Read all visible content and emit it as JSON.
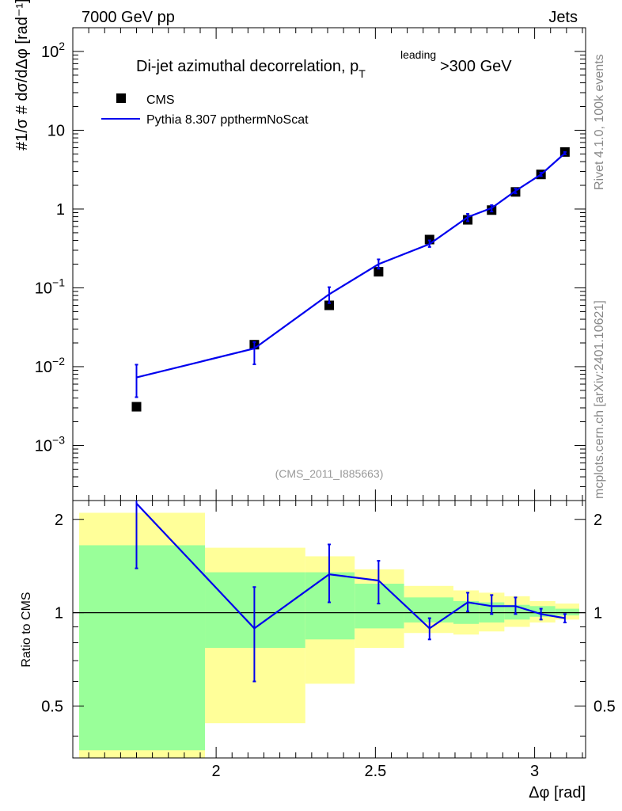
{
  "header": {
    "energy_label": "7000 GeV pp",
    "category_label": "Jets"
  },
  "side_labels": {
    "rivet": "Rivet 4.1.0,  100k events",
    "source": "mcplots.cern.ch [arXiv:2401.10621]"
  },
  "chart_data": [
    {
      "type": "scatter+line",
      "panel": "main",
      "title_main": "Di-jet azimuthal decorrelation, p",
      "title_sub": "T",
      "title_sup": "leading",
      "title_tail": ">300 GeV",
      "ylabel": "#frac{1}{σ}#frac{dσ}{dΔφ} [rad⁻¹]",
      "ylabel_display": "#1/σ # dσ/dΔφ [rad⁻¹]",
      "yscale": "log",
      "ylim": [
        0.0002,
        200
      ],
      "xlim": [
        1.55,
        3.16
      ],
      "ytick_labels": [
        {
          "value": 0.001,
          "base": "10",
          "exp": "−3"
        },
        {
          "value": 0.01,
          "base": "10",
          "exp": "−2"
        },
        {
          "value": 0.1,
          "base": "10",
          "exp": "−1"
        },
        {
          "value": 1,
          "base": "1",
          "exp": ""
        },
        {
          "value": 10,
          "base": "10",
          "exp": ""
        },
        {
          "value": 100,
          "base": "10",
          "exp": "2"
        }
      ],
      "analysis_tag": "(CMS_2011_I885663)",
      "legend": [
        {
          "name": "CMS",
          "marker": "square",
          "color": "#000000"
        },
        {
          "name": "Pythia 8.307 ppthermNoScat",
          "marker": "line",
          "color": "#0000ee"
        }
      ],
      "series": [
        {
          "name": "CMS",
          "x": [
            1.75,
            2.12,
            2.355,
            2.51,
            2.67,
            2.79,
            2.865,
            2.94,
            3.02,
            3.095
          ],
          "y": [
            0.0031,
            0.019,
            0.06,
            0.16,
            0.41,
            0.73,
            0.97,
            1.65,
            2.75,
            5.3
          ]
        },
        {
          "name": "Pythia 8.307 ppthermNoScat",
          "x": [
            1.75,
            2.12,
            2.355,
            2.51,
            2.67,
            2.79,
            2.865,
            2.94,
            3.02,
            3.095
          ],
          "y": [
            0.0073,
            0.017,
            0.083,
            0.2,
            0.36,
            0.79,
            1.03,
            1.7,
            2.75,
            5.1
          ],
          "err_lo": [
            0.0041,
            0.0107,
            0.064,
            0.175,
            0.33,
            0.7,
            0.93,
            1.58,
            2.62,
            4.95
          ],
          "err_hi": [
            0.0106,
            0.0205,
            0.102,
            0.23,
            0.4,
            0.87,
            1.12,
            1.82,
            2.9,
            5.3
          ]
        }
      ]
    },
    {
      "type": "ratio",
      "panel": "ratio",
      "ylabel": "Ratio to CMS",
      "yscale": "log",
      "ylim": [
        0.34,
        2.3
      ],
      "xlim": [
        1.55,
        3.16
      ],
      "xlabel": "Δφ [rad]",
      "xtick_labels": [
        {
          "value": 2,
          "label": "2"
        },
        {
          "value": 2.5,
          "label": "2.5"
        },
        {
          "value": 3,
          "label": "3"
        }
      ],
      "ytick_labels": [
        {
          "value": 0.5,
          "label": "0.5"
        },
        {
          "value": 1,
          "label": "1"
        },
        {
          "value": 2,
          "label": "2"
        }
      ],
      "bands": [
        {
          "x0": 1.57,
          "x1": 1.965,
          "yellow": [
            0.34,
            2.1
          ],
          "green": [
            0.36,
            1.65
          ]
        },
        {
          "x0": 1.965,
          "x1": 2.28,
          "yellow": [
            0.44,
            1.62
          ],
          "green": [
            0.77,
            1.35
          ]
        },
        {
          "x0": 2.28,
          "x1": 2.435,
          "yellow": [
            0.59,
            1.52
          ],
          "green": [
            0.82,
            1.35
          ]
        },
        {
          "x0": 2.435,
          "x1": 2.59,
          "yellow": [
            0.77,
            1.38
          ],
          "green": [
            0.89,
            1.24
          ]
        },
        {
          "x0": 2.59,
          "x1": 2.745,
          "yellow": [
            0.86,
            1.22
          ],
          "green": [
            0.93,
            1.12
          ]
        },
        {
          "x0": 2.745,
          "x1": 2.825,
          "yellow": [
            0.85,
            1.18
          ],
          "green": [
            0.92,
            1.09
          ]
        },
        {
          "x0": 2.825,
          "x1": 2.905,
          "yellow": [
            0.87,
            1.16
          ],
          "green": [
            0.93,
            1.08
          ]
        },
        {
          "x0": 2.905,
          "x1": 2.985,
          "yellow": [
            0.9,
            1.13
          ],
          "green": [
            0.95,
            1.06
          ]
        },
        {
          "x0": 2.985,
          "x1": 3.065,
          "yellow": [
            0.93,
            1.09
          ],
          "green": [
            0.97,
            1.05
          ]
        },
        {
          "x0": 3.065,
          "x1": 3.14,
          "yellow": [
            0.95,
            1.07
          ],
          "green": [
            0.98,
            1.03
          ]
        }
      ],
      "series": [
        {
          "name": "Pythia 8.307 ppthermNoScat / CMS",
          "x": [
            1.75,
            2.12,
            2.355,
            2.51,
            2.67,
            2.79,
            2.865,
            2.94,
            3.02,
            3.095
          ],
          "y": [
            2.25,
            0.89,
            1.33,
            1.27,
            0.89,
            1.08,
            1.05,
            1.05,
            0.99,
            0.96
          ],
          "err_lo": [
            1.39,
            0.6,
            1.08,
            1.07,
            0.82,
            1.01,
            0.99,
            0.99,
            0.95,
            0.93
          ],
          "err_hi": [
            3.3,
            1.21,
            1.66,
            1.47,
            0.96,
            1.16,
            1.14,
            1.12,
            1.03,
            0.99
          ]
        }
      ]
    }
  ]
}
